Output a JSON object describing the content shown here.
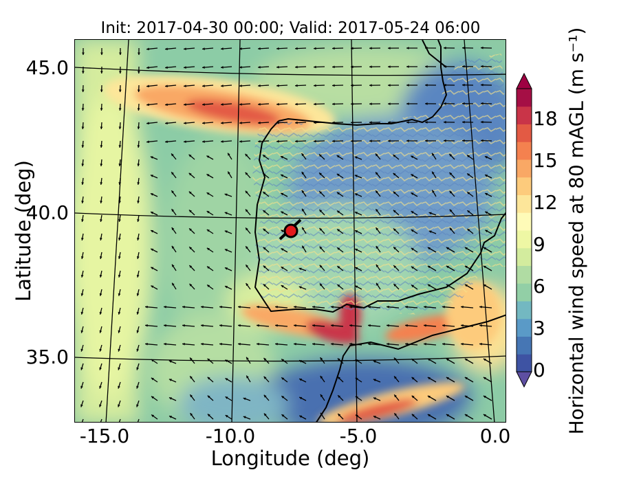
{
  "title": "Init: 2017-04-30 00:00; Valid: 2017-05-24 06:00",
  "xlabel": "Longitude (deg)",
  "ylabel": "Latitude (deg)",
  "x_ticks": [
    "-15.0",
    "-10.0",
    "-5.0",
    "0.0"
  ],
  "y_ticks": [
    "45.0",
    "40.0",
    "35.0"
  ],
  "colorbar": {
    "label": "Horizontal wind speed at 80 mAGL (m s⁻¹)",
    "ticks": [
      "0",
      "3",
      "6",
      "9",
      "12",
      "15",
      "18"
    ],
    "min": 0,
    "max": 20,
    "colors": [
      "#3e53a3",
      "#4676b4",
      "#5a9ac7",
      "#73b8c1",
      "#92cfa6",
      "#b0dca3",
      "#d3ec9e",
      "#eef7a4",
      "#fefbb8",
      "#fde69a",
      "#fdcb7c",
      "#f9a865",
      "#f4814f",
      "#e35a44",
      "#c93448",
      "#a50f45"
    ],
    "extend": "both"
  },
  "marker": {
    "label_hidden": true,
    "lon": -7.7,
    "lat": 39.3,
    "color": "#e31a1c"
  }
}
